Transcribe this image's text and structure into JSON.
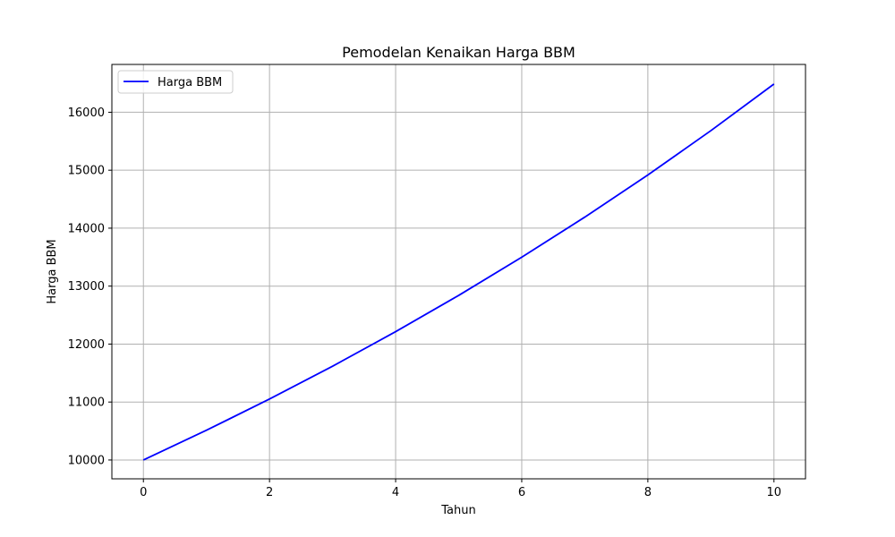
{
  "chart_data": {
    "type": "line",
    "title": "Pemodelan Kenaikan Harga BBM",
    "xlabel": "Tahun",
    "ylabel": "Harga BBM",
    "xlim": [
      -0.5,
      10.5
    ],
    "ylim": [
      9675,
      16825
    ],
    "xticks": [
      0,
      2,
      4,
      6,
      8,
      10
    ],
    "yticks": [
      10000,
      11000,
      12000,
      13000,
      14000,
      15000,
      16000
    ],
    "grid": true,
    "legend_position": "upper-left",
    "series": [
      {
        "name": "Harga BBM",
        "color": "#0000ff",
        "x": [
          0,
          1,
          2,
          3,
          4,
          5,
          6,
          7,
          8,
          9,
          10
        ],
        "y": [
          10000,
          10513,
          11052,
          11618,
          12214,
          12840,
          13499,
          14191,
          14918,
          15683,
          16487
        ]
      }
    ]
  }
}
